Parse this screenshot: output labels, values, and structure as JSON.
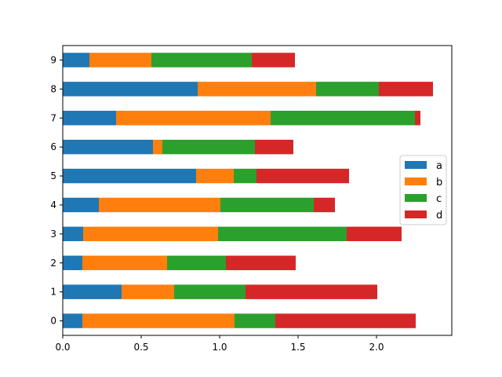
{
  "chart_data": {
    "type": "bar",
    "orientation": "horizontal",
    "stacked": true,
    "categories": [
      "0",
      "1",
      "2",
      "3",
      "4",
      "5",
      "6",
      "7",
      "8",
      "9"
    ],
    "series": [
      {
        "name": "a",
        "color": "#1f77b4",
        "values": [
          0.125,
          0.375,
          0.125,
          0.13,
          0.23,
          0.85,
          0.575,
          0.34,
          0.86,
          0.17
        ]
      },
      {
        "name": "b",
        "color": "#ff7f0e",
        "values": [
          0.97,
          0.335,
          0.54,
          0.86,
          0.775,
          0.24,
          0.06,
          0.985,
          0.755,
          0.395
        ]
      },
      {
        "name": "c",
        "color": "#2ca02c",
        "values": [
          0.26,
          0.455,
          0.375,
          0.82,
          0.595,
          0.145,
          0.59,
          0.92,
          0.4,
          0.64
        ]
      },
      {
        "name": "d",
        "color": "#d62728",
        "values": [
          0.895,
          0.84,
          0.445,
          0.35,
          0.135,
          0.59,
          0.245,
          0.035,
          0.345,
          0.275
        ]
      }
    ],
    "xlim": [
      0,
      2.48
    ],
    "xticks": [
      "0.0",
      "0.5",
      "1.0",
      "1.5",
      "2.0"
    ],
    "xtick_values": [
      0,
      0.5,
      1.0,
      1.5,
      2.0
    ],
    "title": "",
    "xlabel": "",
    "ylabel": "",
    "grid": false,
    "legend": "center-right"
  }
}
